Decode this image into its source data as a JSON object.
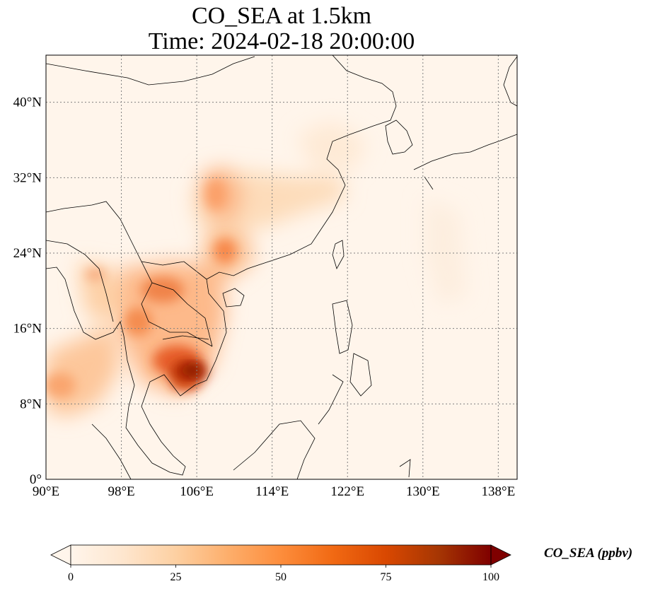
{
  "title": {
    "line1": "CO_SEA at 1.5km",
    "line2": "Time: 2024-02-18 20:00:00"
  },
  "colors": {
    "cmap": [
      "#fff5eb",
      "#fee6ce",
      "#fdd0a2",
      "#fdae6b",
      "#fd8d3c",
      "#f16913",
      "#d94801",
      "#a63603",
      "#7f2704"
    ],
    "coast": "#000000",
    "grid": "#808080"
  },
  "map": {
    "projection": "PlateCarree",
    "lon_range": [
      90,
      140
    ],
    "lat_range": [
      0,
      45
    ],
    "gridlines": "dotted",
    "x_ticks": [
      {
        "value": 90,
        "label": "90°E"
      },
      {
        "value": 98,
        "label": "98°E"
      },
      {
        "value": 106,
        "label": "106°E"
      },
      {
        "value": 114,
        "label": "114°E"
      },
      {
        "value": 122,
        "label": "122°E"
      },
      {
        "value": 130,
        "label": "130°E"
      },
      {
        "value": 138,
        "label": "138°E"
      }
    ],
    "y_ticks": [
      {
        "value": 0,
        "label": "0°"
      },
      {
        "value": 8,
        "label": "8°N"
      },
      {
        "value": 16,
        "label": "16°N"
      },
      {
        "value": 24,
        "label": "24°N"
      },
      {
        "value": 32,
        "label": "32°N"
      },
      {
        "value": 40,
        "label": "40°N"
      }
    ],
    "concentration_features": [
      {
        "feature": "southern-cambodia-peak",
        "lon": 105.8,
        "lat": 11.5,
        "value": 95
      },
      {
        "feature": "cambodia-plume",
        "lon": 104.2,
        "lat": 12.8,
        "value": 70
      },
      {
        "feature": "mekong-delta",
        "lon": 105.5,
        "lat": 10.3,
        "value": 60
      },
      {
        "feature": "northern-laos-vietnam",
        "lon": 103.8,
        "lat": 20.0,
        "value": 45
      },
      {
        "feature": "north-vietnam",
        "lon": 105.5,
        "lat": 21.3,
        "value": 40
      },
      {
        "feature": "thailand-plume",
        "lon": 101.5,
        "lat": 15.8,
        "value": 35
      },
      {
        "feature": "guangxi-guangdong",
        "lon": 108.5,
        "lat": 23.5,
        "value": 38
      },
      {
        "feature": "sichuan-basin",
        "lon": 107.0,
        "lat": 30.0,
        "value": 32
      },
      {
        "feature": "central-china",
        "lon": 111.5,
        "lat": 29.0,
        "value": 22
      },
      {
        "feature": "east-china-outflow",
        "lon": 116.0,
        "lat": 31.5,
        "value": 15
      },
      {
        "feature": "myanmar",
        "lon": 95.0,
        "lat": 21.5,
        "value": 28
      },
      {
        "feature": "bay-of-bengal-outflow",
        "lon": 92.5,
        "lat": 10.0,
        "value": 30
      },
      {
        "feature": "north-china-plain",
        "lon": 116.5,
        "lat": 36.0,
        "value": 10
      },
      {
        "feature": "background",
        "lon": 128.0,
        "lat": 20.0,
        "value": 2
      }
    ]
  },
  "colorbar": {
    "min": 0,
    "max": 100,
    "extend": "both",
    "ticks": [
      {
        "value": 0,
        "label": "0"
      },
      {
        "value": 25,
        "label": "25"
      },
      {
        "value": 50,
        "label": "50"
      },
      {
        "value": 75,
        "label": "75"
      },
      {
        "value": 100,
        "label": "100"
      }
    ],
    "label": "CO_SEA (ppbv)"
  }
}
